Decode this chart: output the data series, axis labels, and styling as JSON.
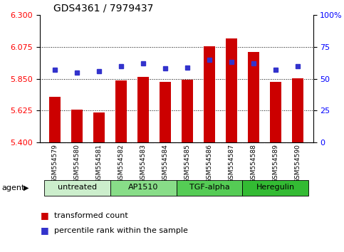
{
  "title": "GDS4361 / 7979437",
  "samples": [
    "GSM554579",
    "GSM554580",
    "GSM554581",
    "GSM554582",
    "GSM554583",
    "GSM554584",
    "GSM554585",
    "GSM554586",
    "GSM554587",
    "GSM554588",
    "GSM554589",
    "GSM554590"
  ],
  "bar_values": [
    5.72,
    5.63,
    5.61,
    5.84,
    5.865,
    5.83,
    5.845,
    6.08,
    6.135,
    6.04,
    5.83,
    5.855
  ],
  "bar_base": 5.4,
  "percentile_values": [
    57,
    55,
    56,
    60,
    62,
    58,
    59,
    65,
    63,
    62,
    57,
    60
  ],
  "left_ylim": [
    5.4,
    6.3
  ],
  "right_ylim": [
    0,
    100
  ],
  "left_yticks": [
    5.4,
    5.625,
    5.85,
    6.075,
    6.3
  ],
  "right_yticks": [
    0,
    25,
    50,
    75,
    100
  ],
  "right_yticklabels": [
    "0",
    "25",
    "50",
    "75",
    "100%"
  ],
  "bar_color": "#cc0000",
  "dot_color": "#3333cc",
  "agent_groups": [
    {
      "label": "untreated",
      "start": 0,
      "end": 3,
      "color": "#cceecc"
    },
    {
      "label": "AP1510",
      "start": 3,
      "end": 6,
      "color": "#88dd88"
    },
    {
      "label": "TGF-alpha",
      "start": 6,
      "end": 9,
      "color": "#55cc55"
    },
    {
      "label": "Heregulin",
      "start": 9,
      "end": 12,
      "color": "#33bb33"
    }
  ],
  "agent_label": "agent",
  "legend_items": [
    {
      "label": "transformed count",
      "color": "#cc0000"
    },
    {
      "label": "percentile rank within the sample",
      "color": "#3333cc"
    }
  ],
  "title_fontsize": 10,
  "bar_width": 0.5,
  "sample_label_fontsize": 6.5,
  "tick_label_fontsize": 8,
  "agent_label_fontsize": 8,
  "legend_fontsize": 8
}
